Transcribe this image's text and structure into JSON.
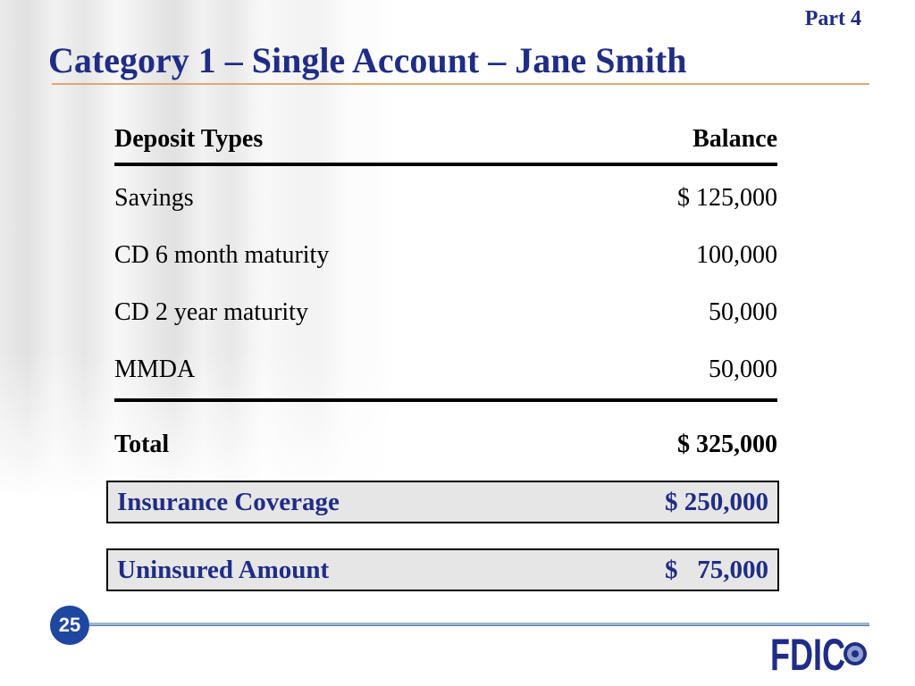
{
  "header": {
    "part_label": "Part  4",
    "title": "Category 1 – Single Account – Jane Smith"
  },
  "table": {
    "col1_header": "Deposit Types",
    "col2_header": "Balance",
    "rows": [
      {
        "type": "Savings",
        "balance": "$ 125,000"
      },
      {
        "type": "CD 6 month maturity",
        "balance": "100,000"
      },
      {
        "type": "CD 2 year maturity",
        "balance": "50,000"
      },
      {
        "type": "MMDA",
        "balance": "50,000"
      }
    ],
    "total_label": "Total",
    "total_value": "$ 325,000"
  },
  "coverage": {
    "label": "Insurance Coverage",
    "value": "$ 250,000"
  },
  "uninsured": {
    "label": "Uninsured Amount",
    "value": "$   75,000"
  },
  "footer": {
    "page_number": "25",
    "logo_text": "FDIC",
    "logo_icon": "fdic-seal-icon",
    "accent_color": "#1f2d86"
  }
}
